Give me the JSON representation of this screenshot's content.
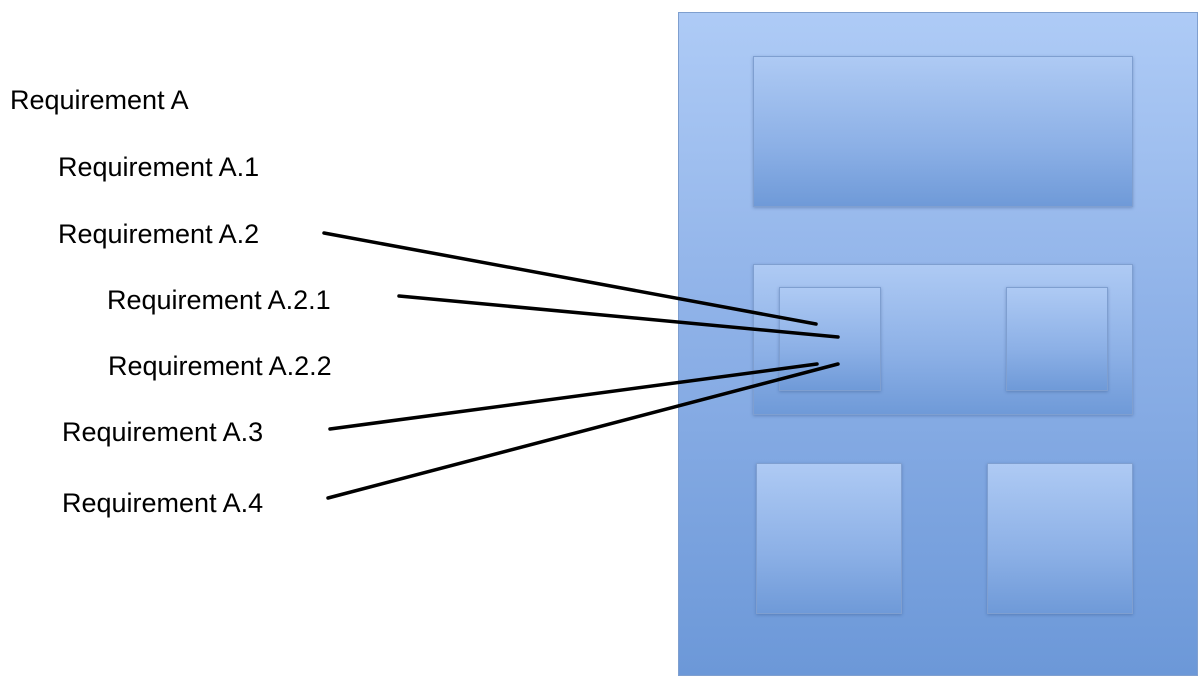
{
  "requirements": {
    "a": "Requirement A",
    "a1": "Requirement A.1",
    "a2": "Requirement A.2",
    "a21": "Requirement A.2.1",
    "a22": "Requirement A.2.2",
    "a3": "Requirement A.3",
    "a4": "Requirement A.4"
  }
}
